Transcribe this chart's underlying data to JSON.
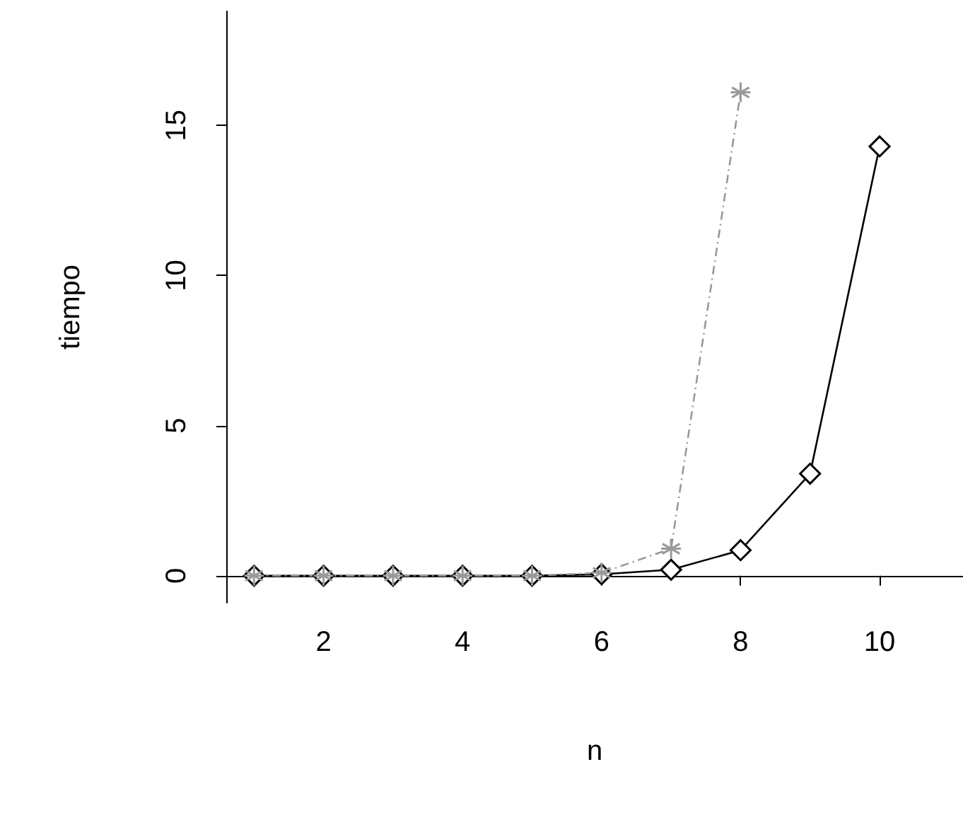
{
  "chart_data": {
    "type": "line",
    "xlabel": "n",
    "ylabel": "tiempo",
    "x": [
      1,
      2,
      3,
      4,
      5,
      6,
      7,
      8,
      9,
      10
    ],
    "series": [
      {
        "color": "#000000",
        "marker": "diamond",
        "line_style": "solid",
        "values": [
          0,
          0,
          0,
          0,
          0,
          0.05,
          0.2,
          0.85,
          3.4,
          14.3
        ]
      },
      {
        "color": "#999999",
        "marker": "cross",
        "line_style": "dashed",
        "values": [
          0,
          0,
          0,
          0,
          0,
          0.1,
          0.9,
          16.1,
          null,
          null
        ]
      }
    ],
    "xlim": [
      0.6,
      11.2
    ],
    "xticks": [
      2,
      4,
      6,
      8,
      10
    ],
    "ylim": [
      -0.9,
      18.8
    ],
    "yticks": [
      0,
      5,
      10,
      15
    ],
    "grid": false
  }
}
